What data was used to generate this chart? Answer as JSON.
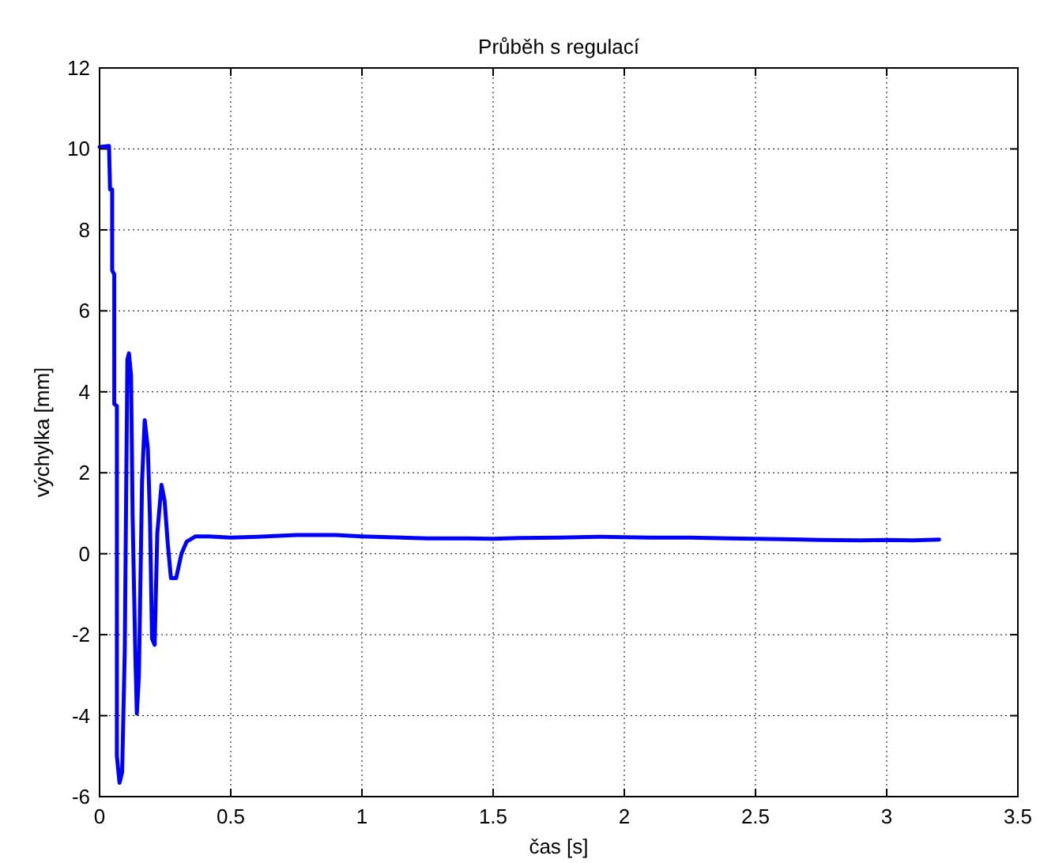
{
  "chart_data": {
    "type": "line",
    "title": "Průběh s regulací",
    "xlabel": "čas [s]",
    "ylabel": "výchylka [mm]",
    "xlim": [
      0,
      3.5
    ],
    "ylim": [
      -6,
      12
    ],
    "xticks": [
      0,
      0.5,
      1,
      1.5,
      2,
      2.5,
      3,
      3.5
    ],
    "yticks": [
      -6,
      -4,
      -2,
      0,
      2,
      4,
      6,
      8,
      10,
      12
    ],
    "grid": true,
    "marker": "none",
    "line_style": "solid",
    "series": [
      {
        "color": "#0000ff",
        "x": [
          0,
          0.036,
          0.04,
          0.048,
          0.048,
          0.056,
          0.056,
          0.066,
          0.066,
          0.076,
          0.086,
          0.096,
          0.106,
          0.112,
          0.12,
          0.126,
          0.136,
          0.142,
          0.15,
          0.162,
          0.172,
          0.184,
          0.192,
          0.2,
          0.21,
          0.22,
          0.236,
          0.248,
          0.26,
          0.272,
          0.292,
          0.312,
          0.332,
          0.366,
          0.416,
          0.5,
          0.6,
          0.75,
          0.9,
          1,
          1.1,
          1.25,
          1.4,
          1.5,
          1.6,
          1.75,
          1.9,
          2,
          2.1,
          2.25,
          2.4,
          2.5,
          2.6,
          2.75,
          2.9,
          3,
          3.1,
          3.2
        ],
        "values": [
          10.05,
          10.07,
          9,
          9,
          7,
          6.9,
          3.7,
          3.65,
          -5,
          -5.66,
          -5.4,
          -2.4,
          4.8,
          4.95,
          4.4,
          0.9,
          -2.4,
          -3.95,
          -3,
          1.8,
          3.3,
          2.6,
          0.9,
          -2.1,
          -2.25,
          0.5,
          1.7,
          1.3,
          0.24,
          -0.6,
          -0.6,
          0,
          0.3,
          0.43,
          0.43,
          0.4,
          0.42,
          0.46,
          0.46,
          0.43,
          0.41,
          0.38,
          0.38,
          0.37,
          0.39,
          0.4,
          0.42,
          0.41,
          0.4,
          0.4,
          0.38,
          0.37,
          0.36,
          0.34,
          0.33,
          0.34,
          0.33,
          0.35
        ]
      }
    ]
  }
}
